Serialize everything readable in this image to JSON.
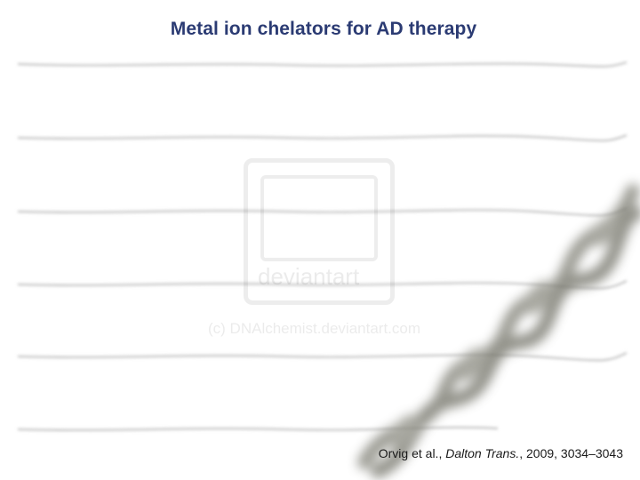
{
  "slide": {
    "title": "Metal ion chelators for AD therapy",
    "citation": {
      "authors": "Orvig et al., ",
      "journal": "Dalton Trans.",
      "details": ", 2009, 3034–3043"
    }
  },
  "watermark": {
    "site": "deviantart",
    "credit": "(c) DNAlchemist.deviantart.com"
  },
  "colors": {
    "title": "#2b3b73",
    "citation": "#1a1a1a",
    "wave": "#c8c8c8",
    "helix": "#6e6e64"
  }
}
